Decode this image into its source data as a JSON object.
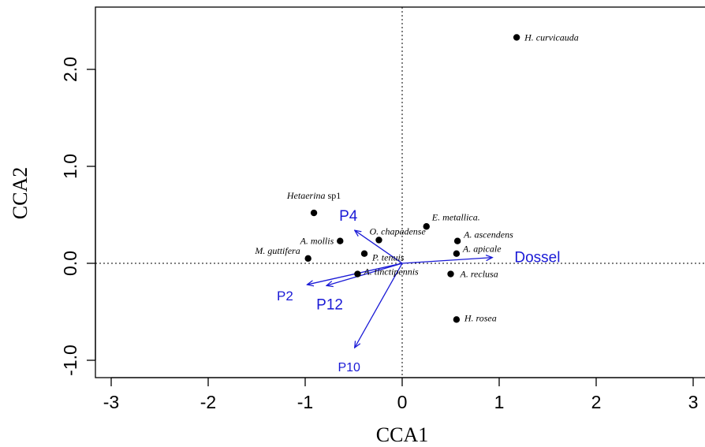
{
  "chart_data": {
    "type": "scatter",
    "xlabel": "CCA1",
    "ylabel": "CCA2",
    "xlim": [
      -3.3,
      3.1
    ],
    "ylim": [
      -1.1,
      2.6
    ],
    "xticks": [
      -3,
      -2,
      -1,
      0,
      1,
      2,
      3
    ],
    "yticks": [
      -1.0,
      0.0,
      1.0,
      2.0
    ],
    "xtick_labels": [
      "-3",
      "-2",
      "-1",
      "0",
      "1",
      "2",
      "3"
    ],
    "ytick_labels": [
      "-1.0",
      "0.0",
      "1.0",
      "2.0"
    ],
    "reference_lines": {
      "x": 0,
      "y": 0,
      "style": "dotted"
    },
    "point_color": "#000000",
    "vector_color": "#1a1ad6",
    "species": [
      {
        "name": "H. curvicauda",
        "x": 1.18,
        "y": 2.33
      },
      {
        "name": "Hetaerina",
        "suffix": " sp1",
        "x": -0.91,
        "y": 0.52
      },
      {
        "name": "E. metallica.",
        "x": 0.25,
        "y": 0.38
      },
      {
        "name": "O. chapadense",
        "x": -0.24,
        "y": 0.24
      },
      {
        "name": "A. mollis",
        "x": -0.64,
        "y": 0.23
      },
      {
        "name": "A. ascendens",
        "x": 0.57,
        "y": 0.23
      },
      {
        "name": "M. guttifera",
        "x": -0.97,
        "y": 0.05
      },
      {
        "name": "P. tenuis",
        "x": -0.39,
        "y": 0.1
      },
      {
        "name": "A. apicale",
        "x": 0.56,
        "y": 0.1
      },
      {
        "name": "A. tinctipennis",
        "x": -0.46,
        "y": -0.11
      },
      {
        "name": "A. reclusa",
        "x": 0.5,
        "y": -0.11
      },
      {
        "name": "H. rosea",
        "x": 0.56,
        "y": -0.58
      }
    ],
    "vectors": [
      {
        "name": "Dossel",
        "x": 0.93,
        "y": 0.06
      },
      {
        "name": "P4",
        "x": -0.49,
        "y": 0.34
      },
      {
        "name": "P2",
        "x": -0.98,
        "y": -0.22
      },
      {
        "name": "P12",
        "x": -0.78,
        "y": -0.23
      },
      {
        "name": "P10",
        "x": -0.49,
        "y": -0.87
      }
    ]
  }
}
